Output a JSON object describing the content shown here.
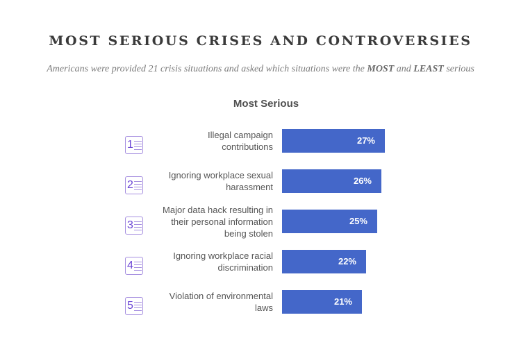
{
  "header": {
    "title": "MOST SERIOUS CRISES AND CONTROVERSIES",
    "subtitle_pre": "Americans were provided 21 crisis situations and asked which situations were the ",
    "subtitle_most": "MOST",
    "subtitle_mid": " and ",
    "subtitle_least": "LEAST",
    "subtitle_post": " serious"
  },
  "section": {
    "title": "Most Serious"
  },
  "colors": {
    "bar": "#4467c9",
    "rank_icon": "#6b45d6"
  },
  "chart_data": {
    "type": "bar",
    "orientation": "horizontal",
    "title": "Most Serious",
    "categories": [
      "Illegal campaign contributions",
      "Ignoring workplace sexual harassment",
      "Major data hack resulting in their personal information being stolen",
      "Ignoring workplace racial discrimination",
      "Violation of environmental laws"
    ],
    "values": [
      27,
      26,
      25,
      22,
      21
    ],
    "value_labels": [
      "27%",
      "26%",
      "25%",
      "22%",
      "21%"
    ],
    "ranks": [
      "1",
      "2",
      "3",
      "4",
      "5"
    ],
    "xlim": [
      0,
      35
    ],
    "grid": false,
    "legend": "none"
  },
  "rows": [
    {
      "rank": "1",
      "label_lines": [
        "Illegal campaign",
        "contributions"
      ],
      "value": 27,
      "value_label": "27%"
    },
    {
      "rank": "2",
      "label_lines": [
        "Ignoring workplace sexual",
        "harassment"
      ],
      "value": 26,
      "value_label": "26%"
    },
    {
      "rank": "3",
      "label_lines": [
        "Major data hack resulting in",
        "their personal information",
        "being stolen"
      ],
      "value": 25,
      "value_label": "25%"
    },
    {
      "rank": "4",
      "label_lines": [
        "Ignoring workplace racial",
        "discrimination"
      ],
      "value": 22,
      "value_label": "22%"
    },
    {
      "rank": "5",
      "label_lines": [
        "Violation of environmental",
        "laws"
      ],
      "value": 21,
      "value_label": "21%"
    }
  ]
}
